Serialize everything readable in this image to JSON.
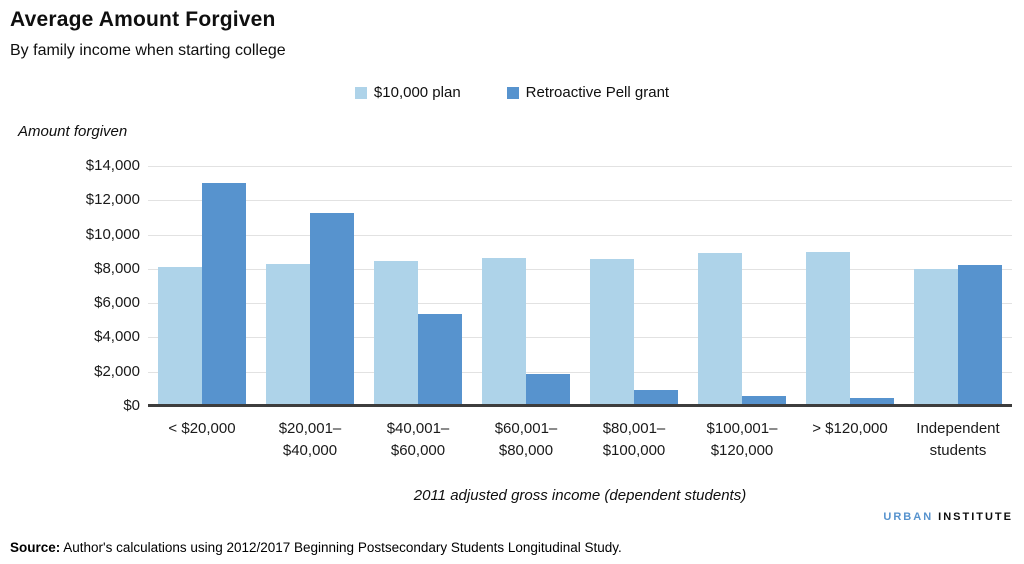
{
  "header": {
    "title": "Average Amount Forgiven",
    "subtitle": "By family income when starting college"
  },
  "chart_data": {
    "type": "bar",
    "title": "Average Amount Forgiven",
    "subtitle": "By family income when starting college",
    "xlabel": "2011 adjusted gross income (dependent students)",
    "ylabel": "Amount forgiven",
    "ylim": [
      0,
      14000
    ],
    "ytick_step": 2000,
    "ytick_labels": [
      "$14,000",
      "$12,000",
      "$10,000",
      "$8,000",
      "$6,000",
      "$4,000",
      "$2,000",
      "$0"
    ],
    "grid": true,
    "legend_position": "top-center",
    "categories": [
      "< $20,000",
      "$20,001–$40,000",
      "$40,001–$60,000",
      "$60,001–$80,000",
      "$80,001–$100,000",
      "$100,001–$120,000",
      "> $120,000",
      "Independent students"
    ],
    "category_lines": [
      [
        "< $20,000"
      ],
      [
        "$20,001–",
        "$40,000"
      ],
      [
        "$40,001–",
        "$60,000"
      ],
      [
        "$60,001–",
        "$80,000"
      ],
      [
        "$80,001–",
        "$100,000"
      ],
      [
        "$100,001–",
        "$120,000"
      ],
      [
        "> $120,000"
      ],
      [
        "Independent",
        "students"
      ]
    ],
    "series": [
      {
        "name": "$10,000 plan",
        "color": "#aed3e9",
        "values": [
          8100,
          8300,
          8450,
          8650,
          8600,
          8900,
          9000,
          8000
        ]
      },
      {
        "name": "Retroactive Pell grant",
        "color": "#5793ce",
        "values": [
          13000,
          11250,
          5350,
          1850,
          950,
          600,
          450,
          8250
        ]
      }
    ],
    "colors": {
      "gridline": "#e2e2e2",
      "axis_line": "#3d3d3d",
      "series_light": "#aed3e9",
      "series_dark": "#5793ce"
    }
  },
  "footer": {
    "logo_part1": "URBAN",
    "logo_part2": "INSTITUTE",
    "source_label": "Source:",
    "source_text": "Author's calculations using 2012/2017 Beginning Postsecondary Students Longitudinal Study."
  }
}
